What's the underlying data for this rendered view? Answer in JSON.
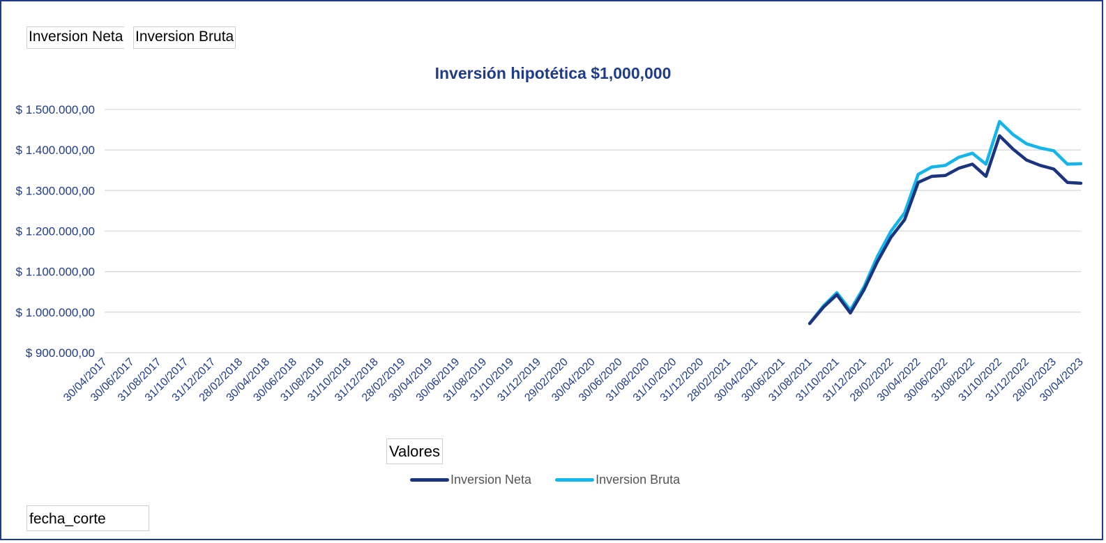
{
  "pivot_fields": {
    "series_buttons": [
      "Inversion Neta",
      "Inversion Bruta"
    ],
    "values_button": "Valores",
    "axis_field": "fecha_corte"
  },
  "colors": {
    "frame": "#1f3b8c",
    "title": "#1f3b8c",
    "axis_text": "#1f3b8c",
    "neta": "#1a347f",
    "bruta": "#13b5ea",
    "grid": "#d9d9d9"
  },
  "chart_data": {
    "type": "line",
    "title": "Inversión hipotética $1,000,000",
    "xlabel": "",
    "ylabel": "",
    "ylim": [
      900000,
      1500000
    ],
    "y_ticks": [
      900000,
      1000000,
      1100000,
      1200000,
      1300000,
      1400000,
      1500000
    ],
    "y_tick_labels": [
      "$ 900.000,00",
      "$ 1.000.000,00",
      "$ 1.100.000,00",
      "$ 1.200.000,00",
      "$ 1.300.000,00",
      "$ 1.400.000,00",
      "$ 1.500.000,00"
    ],
    "grid": true,
    "legend_position": "bottom",
    "x": [
      "30/04/2017",
      "31/05/2017",
      "30/06/2017",
      "31/07/2017",
      "31/08/2017",
      "30/09/2017",
      "31/10/2017",
      "30/11/2017",
      "31/12/2017",
      "31/01/2018",
      "28/02/2018",
      "31/03/2018",
      "30/04/2018",
      "31/05/2018",
      "30/06/2018",
      "31/07/2018",
      "31/08/2018",
      "30/09/2018",
      "31/10/2018",
      "30/11/2018",
      "31/12/2018",
      "31/01/2019",
      "28/02/2019",
      "31/03/2019",
      "30/04/2019",
      "31/05/2019",
      "30/06/2019",
      "31/07/2019",
      "31/08/2019",
      "30/09/2019",
      "31/10/2019",
      "30/11/2019",
      "31/12/2019",
      "31/01/2020",
      "29/02/2020",
      "31/03/2020",
      "30/04/2020",
      "31/05/2020",
      "30/06/2020",
      "31/07/2020",
      "31/08/2020",
      "30/09/2020",
      "31/10/2020",
      "30/11/2020",
      "31/12/2020",
      "31/01/2021",
      "28/02/2021",
      "31/03/2021",
      "30/04/2021",
      "31/05/2021",
      "30/06/2021",
      "31/07/2021",
      "31/08/2021",
      "30/09/2021",
      "31/10/2021",
      "30/11/2021",
      "31/12/2021",
      "31/01/2022",
      "28/02/2022",
      "31/03/2022",
      "30/04/2022",
      "31/05/2022",
      "30/06/2022",
      "31/07/2022",
      "31/08/2022",
      "30/09/2022",
      "31/10/2022",
      "30/11/2022",
      "31/12/2022",
      "31/01/2023",
      "28/02/2023",
      "31/03/2023",
      "30/04/2023"
    ],
    "x_tick_labels": [
      "30/04/2017",
      "30/06/2017",
      "31/08/2017",
      "31/10/2017",
      "31/12/2017",
      "28/02/2018",
      "30/04/2018",
      "30/06/2018",
      "31/08/2018",
      "31/10/2018",
      "31/12/2018",
      "28/02/2019",
      "30/04/2019",
      "30/06/2019",
      "31/08/2019",
      "31/10/2019",
      "31/12/2019",
      "29/02/2020",
      "30/04/2020",
      "30/06/2020",
      "31/08/2020",
      "31/10/2020",
      "31/12/2020",
      "28/02/2021",
      "30/04/2021",
      "30/06/2021",
      "31/08/2021",
      "31/10/2021",
      "31/12/2021",
      "28/02/2022",
      "30/04/2022",
      "30/06/2022",
      "31/08/2022",
      "31/10/2022",
      "31/12/2022",
      "28/02/2023",
      "30/04/2023"
    ],
    "series": [
      {
        "name": "Inversion Neta",
        "values": [
          null,
          null,
          null,
          null,
          null,
          null,
          null,
          null,
          null,
          null,
          null,
          null,
          null,
          null,
          null,
          null,
          null,
          null,
          null,
          null,
          null,
          null,
          null,
          null,
          null,
          null,
          null,
          null,
          null,
          null,
          null,
          null,
          null,
          null,
          null,
          null,
          null,
          null,
          null,
          null,
          null,
          null,
          null,
          null,
          null,
          null,
          null,
          null,
          null,
          null,
          null,
          null,
          972000,
          1012000,
          1043000,
          998000,
          1055000,
          1125000,
          1185000,
          1228000,
          1320000,
          1335000,
          1337000,
          1355000,
          1365000,
          1335000,
          1435000,
          1402000,
          1375000,
          1362000,
          1353000,
          1320000,
          1318000
        ]
      },
      {
        "name": "Inversion Bruta",
        "values": [
          null,
          null,
          null,
          null,
          null,
          null,
          null,
          null,
          null,
          null,
          null,
          null,
          null,
          null,
          null,
          null,
          null,
          null,
          null,
          null,
          null,
          null,
          null,
          null,
          null,
          null,
          null,
          null,
          null,
          null,
          null,
          null,
          null,
          null,
          null,
          null,
          null,
          null,
          null,
          null,
          null,
          null,
          null,
          null,
          null,
          null,
          null,
          null,
          null,
          null,
          null,
          null,
          972000,
          1015000,
          1048000,
          1005000,
          1062000,
          1138000,
          1200000,
          1245000,
          1340000,
          1358000,
          1362000,
          1382000,
          1392000,
          1365000,
          1470000,
          1438000,
          1415000,
          1405000,
          1398000,
          1365000,
          1366000
        ]
      }
    ]
  }
}
